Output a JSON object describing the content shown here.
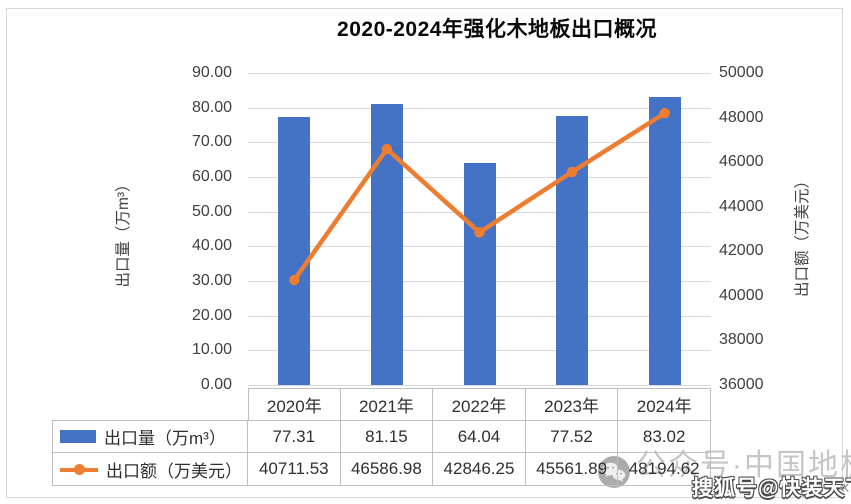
{
  "chart_data": {
    "type": "bar",
    "subtype": "combo-bar-line",
    "title": "2020-2024年强化木地板出口概况",
    "categories": [
      "2020年",
      "2021年",
      "2022年",
      "2023年",
      "2024年"
    ],
    "series": [
      {
        "name": "出口量（万m³）",
        "type": "bar",
        "axis": "left",
        "color": "#4472C4",
        "values": [
          77.31,
          81.15,
          64.04,
          77.52,
          83.02
        ]
      },
      {
        "name": "出口额（万美元）",
        "type": "line",
        "axis": "right",
        "color": "#ED7D31",
        "values": [
          40711.53,
          46586.98,
          42846.25,
          45561.89,
          48194.62
        ]
      }
    ],
    "left_axis": {
      "title": "出口量（万m³）",
      "min": 0,
      "max": 90,
      "step": 10,
      "tick_labels": [
        "90.00",
        "80.00",
        "70.00",
        "60.00",
        "50.00",
        "40.00",
        "30.00",
        "20.00",
        "10.00",
        "0.00"
      ]
    },
    "right_axis": {
      "title": "出口额（万美元）",
      "min": 36000,
      "max": 50000,
      "step": 2000,
      "tick_labels": [
        "50000",
        "48000",
        "46000",
        "44000",
        "42000",
        "40000",
        "38000",
        "36000"
      ]
    },
    "grid": true,
    "legend_position": "data-table-left",
    "colors": {
      "bar": "#4472C4",
      "line": "#ED7D31",
      "gridline": "#d9d9d9",
      "table_border": "#bfbfbf"
    }
  },
  "watermarks": {
    "wechat_account": "公众号·中国地板",
    "sohu_account": "搜狐号@快装天下",
    "chevron": "«"
  }
}
